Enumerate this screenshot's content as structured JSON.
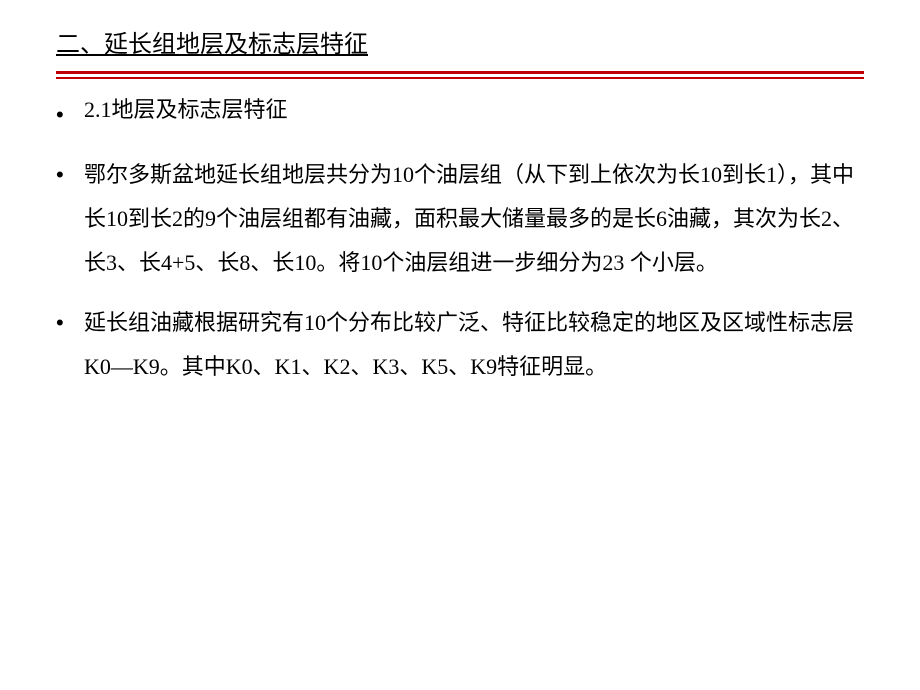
{
  "section_title": "二、延长组地层及标志层特征",
  "divider": {
    "thick_color": "#c00000",
    "thin_color": "#c00000"
  },
  "bullets": [
    {
      "marker": "•",
      "text": "2.1地层及标志层特征",
      "is_subtitle": true
    },
    {
      "marker": "•",
      "text": "鄂尔多斯盆地延长组地层共分为10个油层组（从下到上依次为长10到长1），其中长10到长2的9个油层组都有油藏，面积最大储量最多的是长6油藏，其次为长2、长3、长4+5、长8、长10。将10个油层组进一步细分为23 个小层。",
      "is_subtitle": false
    },
    {
      "marker": "•",
      "text": "延长组油藏根据研究有10个分布比较广泛、特征比较稳定的地区及区域性标志层K0—K9。其中K0、K1、K2、K3、K5、K9特征明显。",
      "is_subtitle": false
    }
  ],
  "typography": {
    "title_fontsize": 24,
    "body_fontsize": 22,
    "line_height": 2.0,
    "text_color": "#000000",
    "background_color": "#ffffff"
  }
}
